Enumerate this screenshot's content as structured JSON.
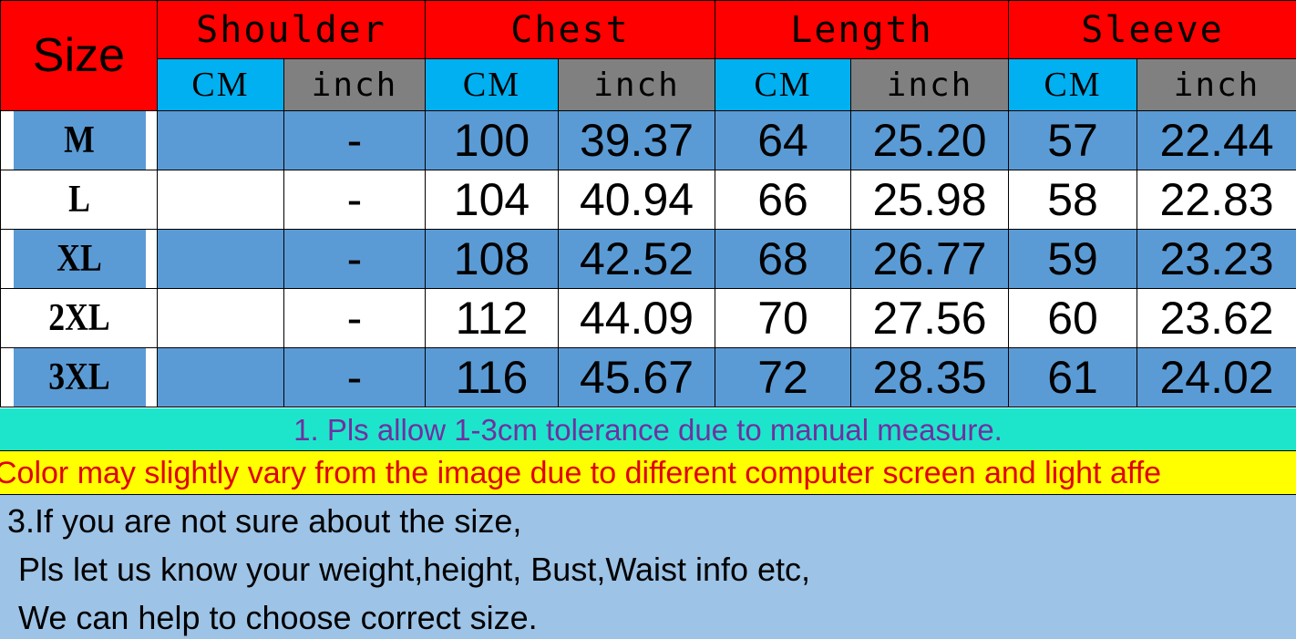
{
  "header": {
    "size_label": "Size",
    "groups": [
      "Shoulder",
      "Chest",
      "Length",
      "Sleeve"
    ],
    "unit_cm": "CM",
    "unit_inch": "inch"
  },
  "rows": [
    {
      "size": "M",
      "shoulder_cm": "",
      "shoulder_inch": "-",
      "chest_cm": "100",
      "chest_inch": "39.37",
      "length_cm": "64",
      "length_inch": "25.20",
      "sleeve_cm": "57",
      "sleeve_inch": "22.44"
    },
    {
      "size": "L",
      "shoulder_cm": "",
      "shoulder_inch": "-",
      "chest_cm": "104",
      "chest_inch": "40.94",
      "length_cm": "66",
      "length_inch": "25.98",
      "sleeve_cm": "58",
      "sleeve_inch": "22.83"
    },
    {
      "size": "XL",
      "shoulder_cm": "",
      "shoulder_inch": "-",
      "chest_cm": "108",
      "chest_inch": "42.52",
      "length_cm": "68",
      "length_inch": "26.77",
      "sleeve_cm": "59",
      "sleeve_inch": "23.23"
    },
    {
      "size": "2XL",
      "shoulder_cm": "",
      "shoulder_inch": "-",
      "chest_cm": "112",
      "chest_inch": "44.09",
      "length_cm": "70",
      "length_inch": "27.56",
      "sleeve_cm": "60",
      "sleeve_inch": "23.62"
    },
    {
      "size": "3XL",
      "shoulder_cm": "",
      "shoulder_inch": "-",
      "chest_cm": "116",
      "chest_inch": "45.67",
      "length_cm": "72",
      "length_inch": "28.35",
      "sleeve_cm": "61",
      "sleeve_inch": "24.02"
    }
  ],
  "notes": {
    "note1": "1. Pls allow 1-3cm tolerance due to manual measure.",
    "note2": "Color may slightly vary from the image due to different computer screen and light affe",
    "note3_lines": [
      "3.If you are not sure about the size,",
      "Pls let us know your weight,height, Bust,Waist info etc,",
      "We can help to choose correct size."
    ]
  },
  "colors": {
    "header_red": "#ff0000",
    "cm_cyan": "#00b0f0",
    "inch_gray": "#808080",
    "row_blue": "#5b9bd5",
    "note1_bg": "#1de5cb",
    "note1_text": "#7030a0",
    "note2_bg": "#ffff00",
    "note2_text": "#e00000",
    "note3_bg": "#9dc3e6"
  }
}
